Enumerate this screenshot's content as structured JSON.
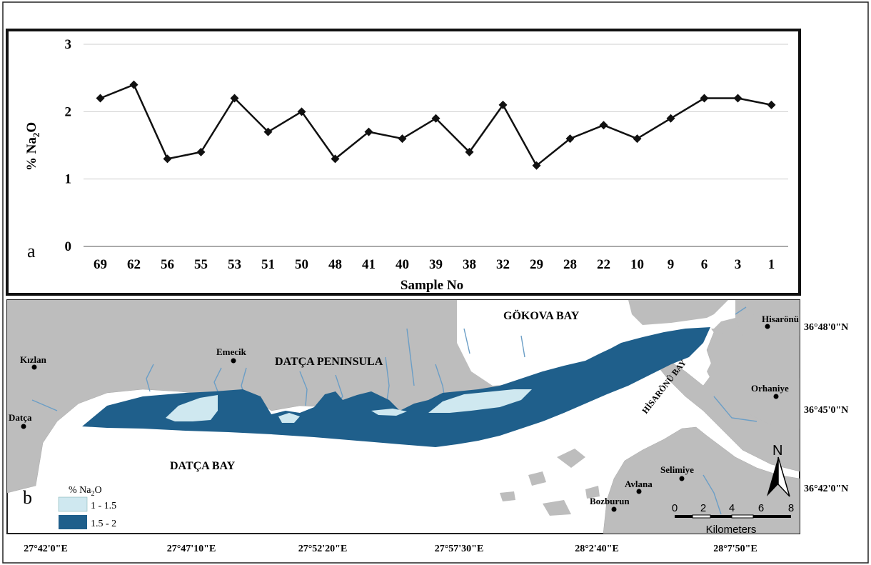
{
  "chart_data": {
    "type": "line",
    "panel_label": "a",
    "xlabel": "Sample No",
    "ylabel": "% Na",
    "ylabel_sub": "2",
    "ylabel_tail": "O",
    "ylim": [
      0,
      3
    ],
    "yticks": [
      "0",
      "1",
      "2",
      "3"
    ],
    "grid": true,
    "categories": [
      "69",
      "62",
      "56",
      "55",
      "53",
      "51",
      "50",
      "48",
      "41",
      "40",
      "39",
      "38",
      "32",
      "29",
      "28",
      "22",
      "10",
      "9",
      "6",
      "3",
      "1"
    ],
    "values": [
      2.2,
      2.4,
      1.3,
      1.4,
      2.2,
      1.7,
      2.0,
      1.3,
      1.7,
      1.6,
      1.9,
      1.4,
      2.1,
      1.2,
      1.6,
      1.8,
      1.6,
      1.9,
      2.2,
      2.2,
      2.1
    ],
    "marker": "diamond",
    "line_color": "#111111"
  },
  "map": {
    "panel_label": "b",
    "places": {
      "kizlan": "Kızlan",
      "datca": "Datça",
      "emecik": "Emecik",
      "hisaronu": "Hisarönü",
      "orhaniye": "Orhaniye",
      "selimiye": "Selimiye",
      "avlana": "Avlana",
      "bozburun": "Bozburun"
    },
    "regions": {
      "peninsula": "DATÇA PENINSULA",
      "gokova": "GÖKOVA BAY",
      "datca_bay": "DATÇA BAY",
      "hisaronu_bay": "HİSARÖNÜ BAY"
    },
    "lat_labels": [
      "36°48'0\"N",
      "36°45'0\"N",
      "36°42'0\"N"
    ],
    "lon_labels": [
      "27°42'0\"E",
      "27°47'10\"E",
      "27°52'20\"E",
      "27°57'30\"E",
      "28°2'40\"E",
      "28°7'50\"E"
    ],
    "legend": {
      "title_main": "% Na",
      "title_sub": "2",
      "title_tail": "O",
      "items": [
        {
          "label": "1 - 1.5",
          "color": "#cfe8f0"
        },
        {
          "label": "1.5 - 2",
          "color": "#1f5f8b"
        }
      ]
    },
    "north": "N",
    "scale_ticks": [
      "0",
      "2",
      "4",
      "6",
      "8"
    ],
    "scale_unit": "Kilometers",
    "colors": {
      "land": "#bdbdbd",
      "sea": "#ffffff",
      "river": "#6b9ec6",
      "zone_low": "#cfe8f0",
      "zone_high": "#1f5f8b"
    }
  }
}
